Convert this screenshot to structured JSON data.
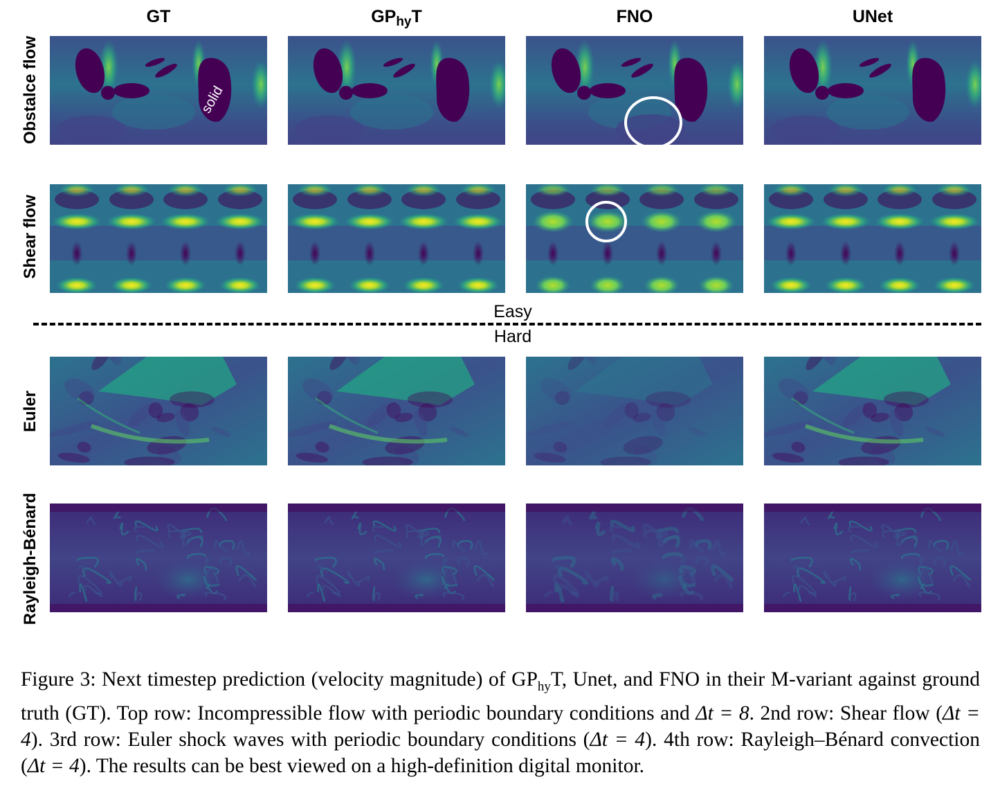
{
  "columns": [
    {
      "label": "GT",
      "sub": ""
    },
    {
      "label": "GP",
      "sub": "hy",
      "suffix": "T"
    },
    {
      "label": "FNO",
      "sub": ""
    },
    {
      "label": "UNet",
      "sub": ""
    }
  ],
  "rows": [
    {
      "label": "Obstalce flow"
    },
    {
      "label": "Shear flow"
    },
    {
      "label": "Euler"
    },
    {
      "label": "Rayleigh-Bénard"
    }
  ],
  "annotations": {
    "solid_label": "solid",
    "easy_label": "Easy",
    "hard_label": "Hard"
  },
  "colors": {
    "viridis_dark": "#440154",
    "viridis_blue": "#3b528b",
    "viridis_teal": "#21918c",
    "viridis_green": "#5ec962",
    "viridis_yellow": "#fde725"
  },
  "caption": {
    "figure_label": "Figure 3:",
    "part1": "Next timestep prediction (velocity magnitude) of GP",
    "part1_sub": "hy",
    "part2": "T, Unet, and FNO in their M-variant against ground truth (GT). Top row: Incompressible flow with periodic boundary conditions and ",
    "delta1": "Δt = 8",
    "part3": ". 2nd row: Shear flow (",
    "delta2": "Δt = 4",
    "part4": "). 3rd row: Euler shock waves with periodic boundary conditions (",
    "delta3": "Δt = 4",
    "part5": "). 4th row: Rayleigh–Bénard convection (",
    "delta4": "Δt = 4",
    "part6": "). The results can be best viewed on a high-definition digital monitor."
  }
}
